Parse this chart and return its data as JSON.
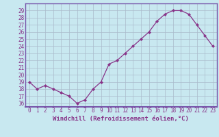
{
  "x": [
    0,
    1,
    2,
    3,
    4,
    5,
    6,
    7,
    8,
    9,
    10,
    11,
    12,
    13,
    14,
    15,
    16,
    17,
    18,
    19,
    20,
    21,
    22,
    23
  ],
  "y": [
    19.0,
    18.0,
    18.5,
    18.0,
    17.5,
    17.0,
    16.0,
    16.5,
    18.0,
    19.0,
    21.5,
    22.0,
    23.0,
    24.0,
    25.0,
    26.0,
    27.5,
    28.5,
    29.0,
    29.0,
    28.5,
    27.0,
    25.5,
    24.0
  ],
  "line_color": "#883388",
  "marker": "D",
  "marker_size": 2.0,
  "linewidth": 0.9,
  "xlabel": "Windchill (Refroidissement éolien,°C)",
  "xlabel_fontsize": 6.5,
  "ylabel_ticks": [
    16,
    17,
    18,
    19,
    20,
    21,
    22,
    23,
    24,
    25,
    26,
    27,
    28,
    29
  ],
  "xtick_labels": [
    "0",
    "1",
    "2",
    "3",
    "4",
    "5",
    "6",
    "7",
    "8",
    "9",
    "10",
    "11",
    "12",
    "13",
    "14",
    "15",
    "16",
    "17",
    "18",
    "19",
    "20",
    "21",
    "22",
    "23"
  ],
  "ylim": [
    15.5,
    30.0
  ],
  "xlim": [
    -0.5,
    23.5
  ],
  "bg_color": "#c8e8f0",
  "grid_color": "#aabbcc",
  "tick_color": "#883388",
  "tick_fontsize": 5.5,
  "border_color": "#7755aa"
}
